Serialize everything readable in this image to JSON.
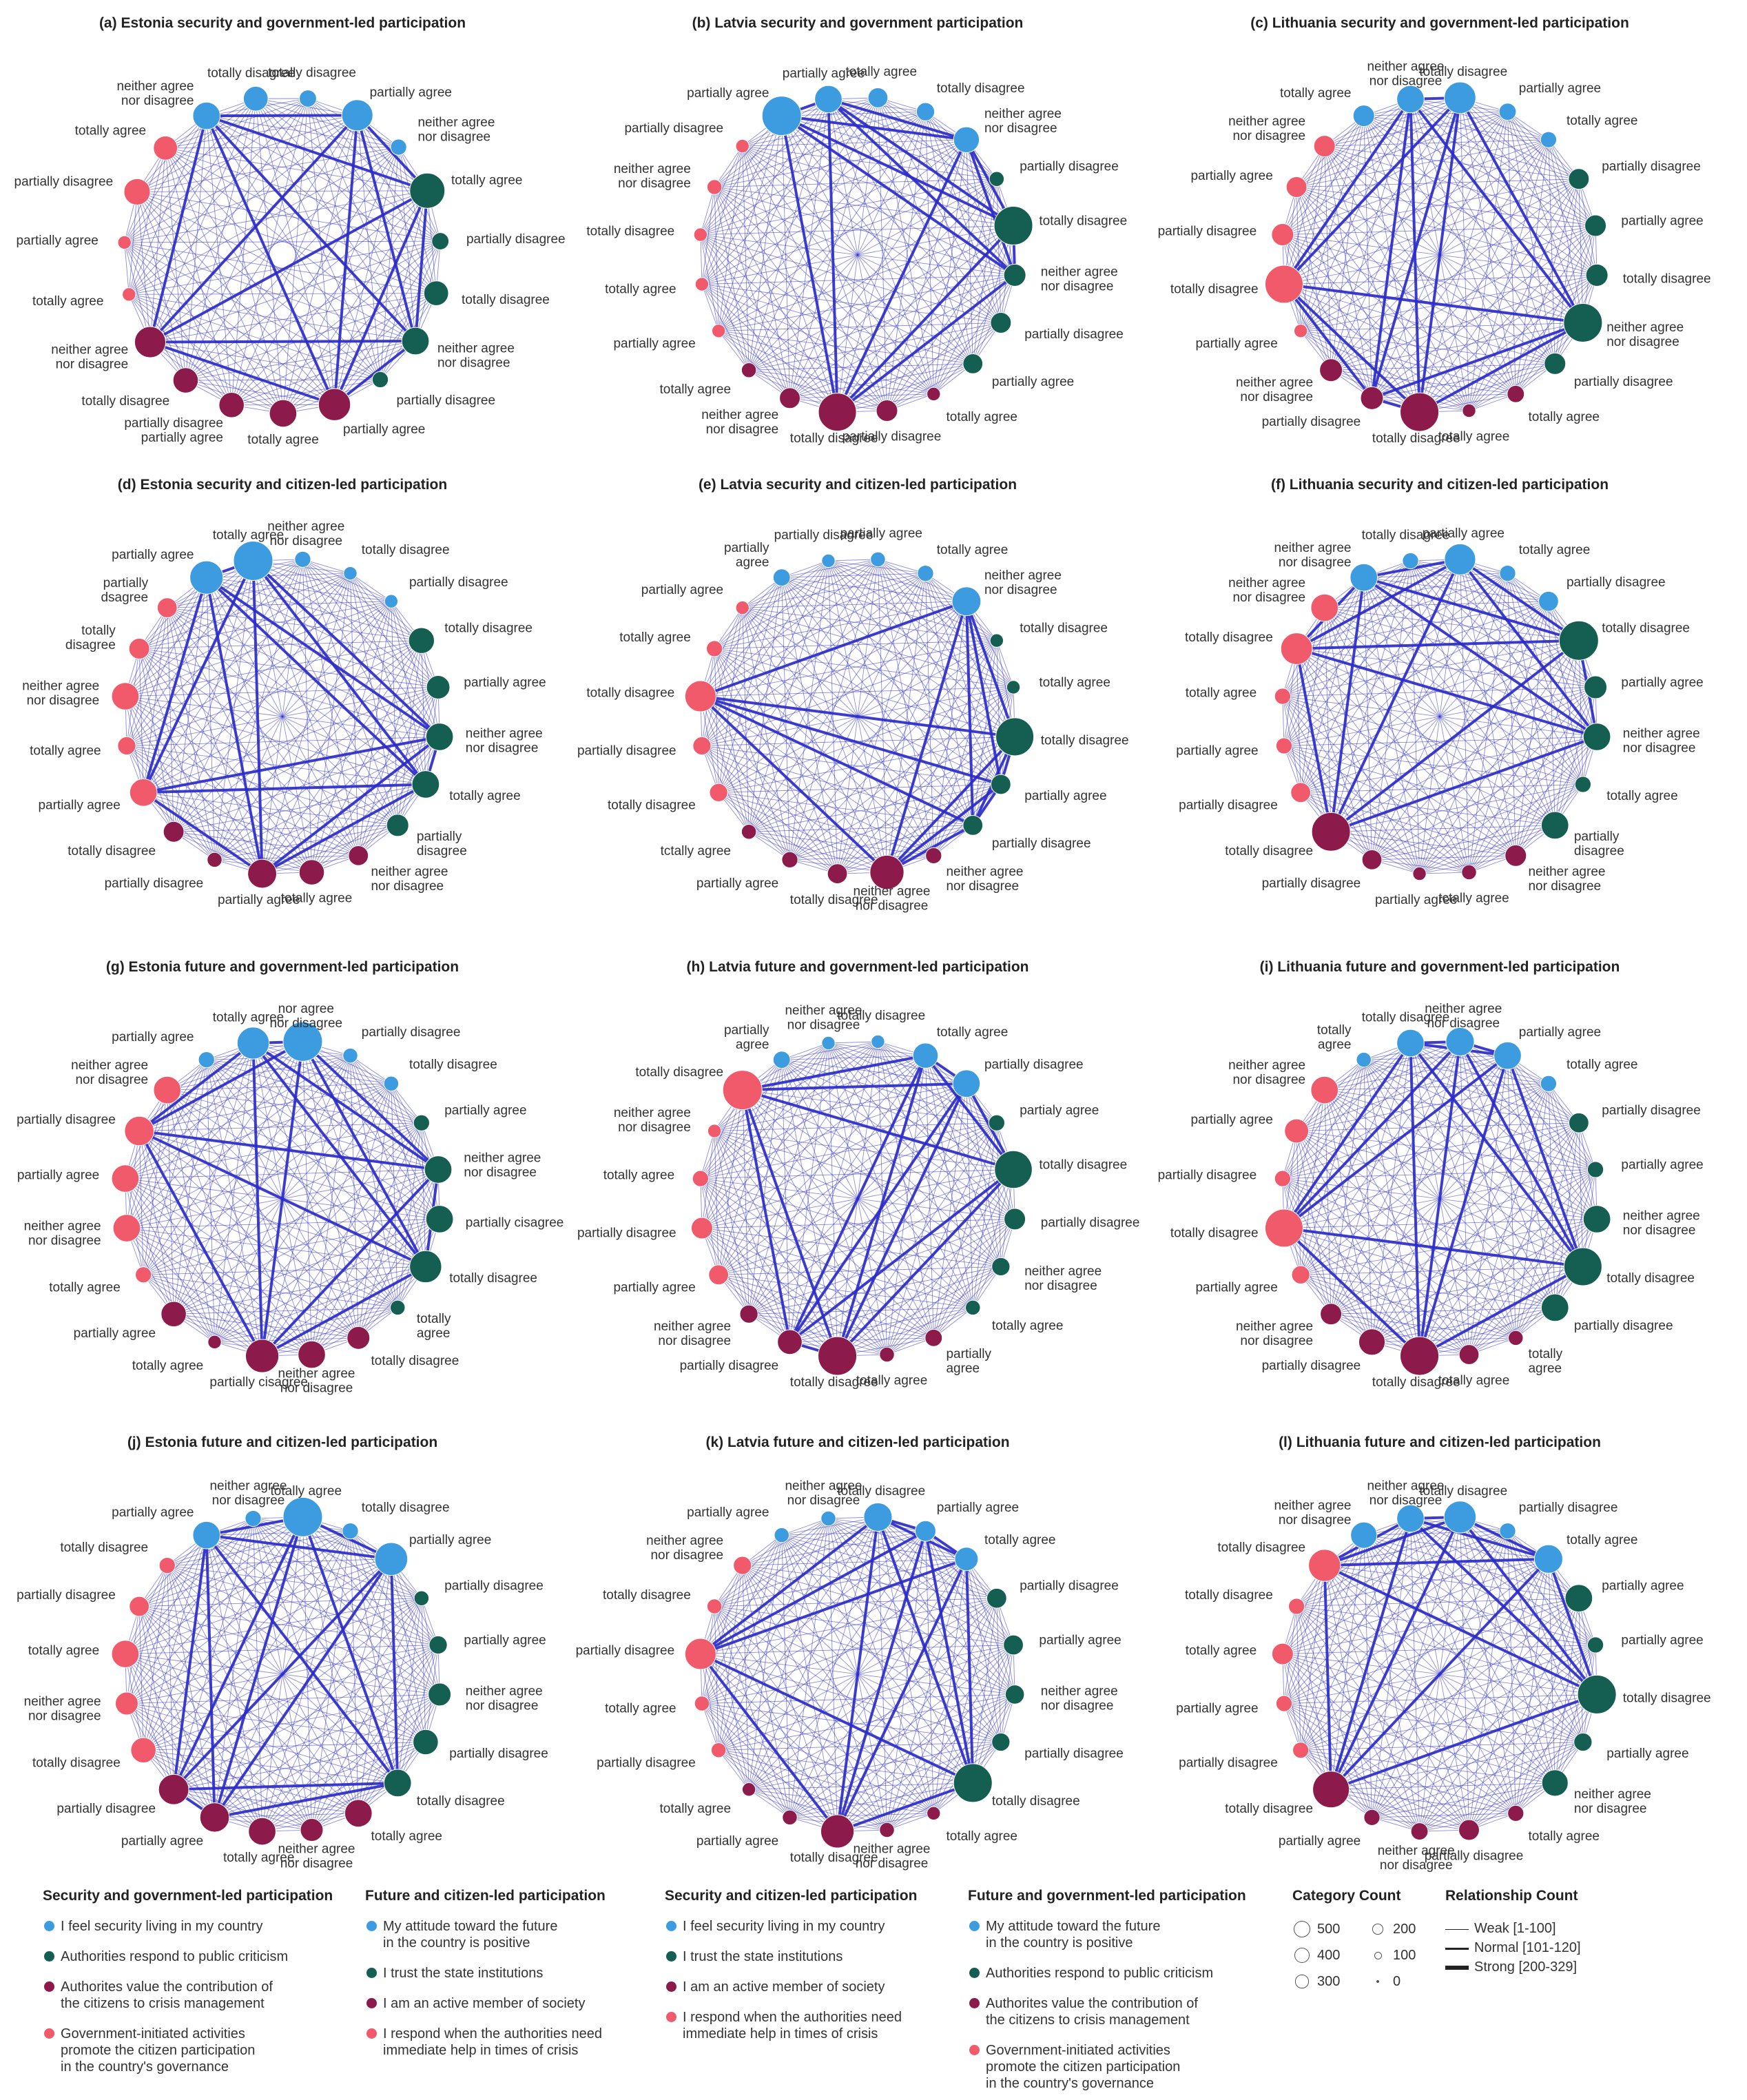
{
  "colors": {
    "c1": "#3d9be0",
    "c2": "#155e52",
    "c3": "#8c1a4a",
    "c4": "#f05a6a",
    "edge": "#2b2bc8"
  },
  "panels": [
    {
      "title": "(a) Estonia security and government-led participation",
      "labels": [
        "neither agree\nnor disagree",
        "totally disagree",
        "totally disagree",
        "partially agree",
        "neither agree\nnor disagree",
        "totally agree",
        "partially disagree",
        "totally disagree",
        "neither agree\nnor disagree",
        "partially disagree",
        "partially agree",
        "totally agree",
        "partially disagree\npartially agree",
        "totally disagree",
        "neither agree\nnor disagree",
        "totally agree",
        "partially agree",
        "partially disagree",
        "totally agree"
      ],
      "sizes": [
        200,
        150,
        50,
        280,
        40,
        380,
        50,
        150,
        200,
        40,
        300,
        200,
        160,
        160,
        280,
        20,
        20,
        180,
        140
      ]
    },
    {
      "title": "(b) Latvia security and government participation",
      "labels": [
        "partially agree",
        "partially agree",
        "totally agree",
        "totally disagree",
        "neither agree\nnor disagree",
        "partially disagree",
        "totally disagree",
        "neither agree\nnor disagree",
        "partially disagree",
        "partially agree",
        "totally agree",
        "partially disagree",
        "totally disagree",
        "neither agree\nnor disagree",
        "totally agree",
        "partially agree",
        "totally agree",
        "totally disagree",
        "neither agree\nnor disagree",
        "partially disagree"
      ],
      "sizes": [
        500,
        200,
        80,
        60,
        170,
        30,
        480,
        110,
        90,
        80,
        20,
        100,
        460,
        90,
        30,
        20,
        20,
        20,
        30,
        20
      ]
    },
    {
      "title": "(c) Lithuania security and government-led participation",
      "labels": [
        "totally agree",
        "neither agree\nnor disagree",
        "totally disagree",
        "partially agree",
        "totally agree",
        "partially disagree",
        "partially agree",
        "totally disagree",
        "neither agree\nnor disagree",
        "partially disagree",
        "totally agree",
        "totally agree",
        "totally disagree",
        "partially disagree",
        "neither agree\nnor disagree",
        "partially agree",
        "totally disagree",
        "partially disagree",
        "partially agree",
        "neither agree\nnor disagree"
      ],
      "sizes": [
        100,
        200,
        290,
        50,
        40,
        90,
        100,
        110,
        480,
        100,
        50,
        20,
        480,
        120,
        120,
        20,
        460,
        110,
        90,
        100
      ]
    },
    {
      "title": "(d) Estonia security and citizen-led participation",
      "labels": [
        "partially agree",
        "totally agree",
        "neither agree\nnor disagree",
        "totally disagree",
        "partially disagree",
        "totally disagree",
        "partially agree",
        "neither agree\nnor disagree",
        "totally agree",
        "partially\ndisagree",
        "neither agree\nnor disagree",
        "totally agree",
        "partially agree",
        "partially disagree",
        "totally disagree",
        "partially agree",
        "totally agree",
        "neither agree\nnor disagree",
        "totally\ndisagree",
        "partially\ndsagree"
      ],
      "sizes": [
        330,
        500,
        40,
        20,
        20,
        170,
        130,
        200,
        200,
        110,
        80,
        160,
        230,
        30,
        90,
        200,
        60,
        200,
        90,
        80
      ]
    },
    {
      "title": "(e) Latvia security and citizen-led participation",
      "labels": [
        "partially\nagree",
        "partially disagree",
        "partially agree",
        "totally agree",
        "neither agree\nnor disagree",
        "totally disagree",
        "totally agree",
        "totally disagree",
        "partially agree",
        "partially disagree",
        "neither agree\nnor disagree",
        "neither agree\nnor disagree",
        "totally disagree",
        "partially agree",
        "tctally agree",
        "totally disagree",
        "partially disagree",
        "totally disagree",
        "totally agree",
        "partially agree"
      ],
      "sizes": [
        50,
        20,
        30,
        40,
        230,
        20,
        20,
        460,
        80,
        80,
        40,
        350,
        80,
        40,
        30,
        60,
        60,
        280,
        40,
        20
      ]
    },
    {
      "title": "(f) Lithuania security and citizen-led participation",
      "labels": [
        "neither agree\nnor disagree",
        "totally disagree",
        "partially agree",
        "totally agree",
        "partially disagree",
        "totally disagree",
        "partially agree",
        "neither agree\nnor disagree",
        "totally agree",
        "partially\ndisagree",
        "neither agree\nnor disagree",
        "tctally agree",
        "partially agree",
        "partially disagree",
        "totally disagree",
        "partially disagree",
        "partially agree",
        "totally agree",
        "totally disagree",
        "neither agree\nnor disagree"
      ],
      "sizes": [
        200,
        40,
        280,
        40,
        80,
        500,
        120,
        200,
        40,
        200,
        100,
        30,
        20,
        80,
        480,
        80,
        40,
        40,
        290,
        200
      ]
    },
    {
      "title": "(g) Estonia future and government-led participation",
      "labels": [
        "partially agree",
        "totally agree",
        "nor agree\nnor disagree",
        "partially disagree",
        "totally disagree",
        "partially agree",
        "neither agree\nnor disagree",
        "partially cisagree",
        "totally disagree",
        "totally\nagree",
        "totally disagree",
        "neither agree\nnor disagree",
        "partially cisagree",
        "totally agree",
        "partially agree",
        "totally agree",
        "neither agree\nnor disagree",
        "partially agree",
        "partially disagree",
        "neither agree\nnor disagree"
      ],
      "sizes": [
        40,
        300,
        500,
        30,
        30,
        40,
        200,
        200,
        300,
        30,
        120,
        200,
        330,
        20,
        160,
        40,
        200,
        200,
        240,
        200
      ]
    },
    {
      "title": "(h) Latvia future and government-led participation",
      "labels": [
        "partially\nagree",
        "neither agree\nnor disagree",
        "totally disagree",
        "totally agree",
        "partially disagree",
        "partialy agree",
        "totally disagree",
        "partially disagree",
        "neither agree\nnor disagree",
        "totally agree",
        "partially\nagree",
        "totally agree",
        "totally disagree",
        "partially disagree",
        "neither agree\nnor disagree",
        "partially agree",
        "partially disagree",
        "totally agree",
        "neither agree\nnor disagree",
        "totally disagree"
      ],
      "sizes": [
        50,
        20,
        20,
        160,
        200,
        40,
        450,
        100,
        60,
        30,
        50,
        30,
        480,
        150,
        60,
        80,
        100,
        40,
        20,
        500
      ]
    },
    {
      "title": "(i) Lithuania future and government-led participation",
      "labels": [
        "totally\nagree",
        "totally disagree",
        "neither agree\nnor disagree",
        "partially agree",
        "totally agree",
        "partially disagree",
        "partially agree",
        "neither agree\nnor disagree",
        "totally disagree",
        "partially disagree",
        "totally\nagree",
        "totally agree",
        "totally disagree",
        "partially disagree",
        "neither agree\nnor disagree",
        "partially agree",
        "totally disagree",
        "partially disagree",
        "partially agree",
        "neither agree\nnor disagree"
      ],
      "sizes": [
        30,
        200,
        220,
        200,
        40,
        80,
        40,
        200,
        460,
        200,
        30,
        80,
        480,
        180,
        100,
        60,
        460,
        40,
        140,
        200
      ]
    },
    {
      "title": "(j) Estonia future and citizen-led participation",
      "labels": [
        "partially agree",
        "neither agree\nnor disagree",
        "totally agree",
        "totally disagree",
        "partially agree",
        "partially disagree",
        "partially agree",
        "neither agree\nnor disagree",
        "partially disagree",
        "totally disagree",
        "totally agree",
        "neither agree\nnor disagree",
        "totally agree",
        "partially agree",
        "partially disagree",
        "totally disagree",
        "neither agree\nnor disagree",
        "totally agree",
        "partially disagree",
        "totally disagree"
      ],
      "sizes": [
        200,
        40,
        500,
        40,
        320,
        30,
        60,
        120,
        160,
        200,
        200,
        120,
        200,
        240,
        260,
        160,
        120,
        200,
        80,
        40
      ]
    },
    {
      "title": "(k) Latvia future and citizen-led participation",
      "labels": [
        "partially agree",
        "neither agree\nnor disagree",
        "totally disagree",
        "partially agree",
        "totally agree",
        "partially disagree",
        "partially agree",
        "neither agree\nnor disagree",
        "partially disagree",
        "totally disagree",
        "totally agree",
        "neither agree\nnor disagree",
        "totally disagree",
        "partially agree",
        "totally agree",
        "partially disagree",
        "totally agree",
        "partially disagree",
        "totally disagree",
        "neither agree\nnor disagree"
      ],
      "sizes": [
        30,
        30,
        220,
        90,
        130,
        80,
        80,
        70,
        60,
        480,
        20,
        30,
        330,
        30,
        20,
        30,
        30,
        280,
        30,
        60
      ]
    },
    {
      "title": "(l) Lithuania future and citizen-led participation",
      "labels": [
        "neither agree\nnor disagree",
        "neither agree\nnor disagree",
        "totally disagree",
        "partially disagree",
        "totally agree",
        "partially agree",
        "partially agree",
        "totally disagree",
        "partially agree",
        "neither agree\nnor disagree",
        "totally agree",
        "partially disagree",
        "neither agree\nnor disagree",
        "partially agree",
        "totally disagree",
        "partially disagree",
        "partially agree",
        "totally agree",
        "totally disagree",
        "totally disagree"
      ],
      "sizes": [
        180,
        200,
        300,
        40,
        220,
        200,
        40,
        480,
        60,
        180,
        40,
        90,
        50,
        40,
        420,
        40,
        40,
        100,
        40,
        300
      ]
    }
  ],
  "legend": {
    "groups": [
      {
        "title": "Security and government-led participation",
        "items": [
          "I feel security living in my country",
          "Authorities respond to public criticism",
          "Authorites value the contribution of\nthe citizens to crisis management",
          "Government-initiated activities\npromote the citizen participation\nin the country's governance"
        ]
      },
      {
        "title": "Future and citizen-led participation",
        "items": [
          "My attitude toward the future\nin the country is positive",
          "I trust the state institutions",
          "I am an active member of society",
          "I respond when the authorities need\nimmediate help in times of crisis"
        ]
      },
      {
        "title": "Security and citizen-led participation",
        "items": [
          "I feel security living in my country",
          "I trust the state institutions",
          "I am an active member of society",
          "I respond when the authorities need\nimmediate help in times of crisis"
        ]
      },
      {
        "title": "Future and government-led participation",
        "items": [
          "My attitude toward the future\nin the country is positive",
          "Authorities respond to public criticism",
          "Authorites value the contribution of\nthe citizens to crisis management",
          "Government-initiated activities\npromote the citizen participation\nin the country's governance"
        ]
      }
    ],
    "category_count": {
      "title": "Category Count",
      "values": [
        500,
        400,
        300,
        200,
        100,
        0
      ],
      "labels": [
        "500",
        "400",
        "300",
        "200",
        "100",
        "0"
      ]
    },
    "relationship_count": {
      "title": "Relationship Count",
      "items": [
        "Weak [1-100]",
        "Normal [101-120]",
        "Strong [200-329]"
      ]
    }
  }
}
